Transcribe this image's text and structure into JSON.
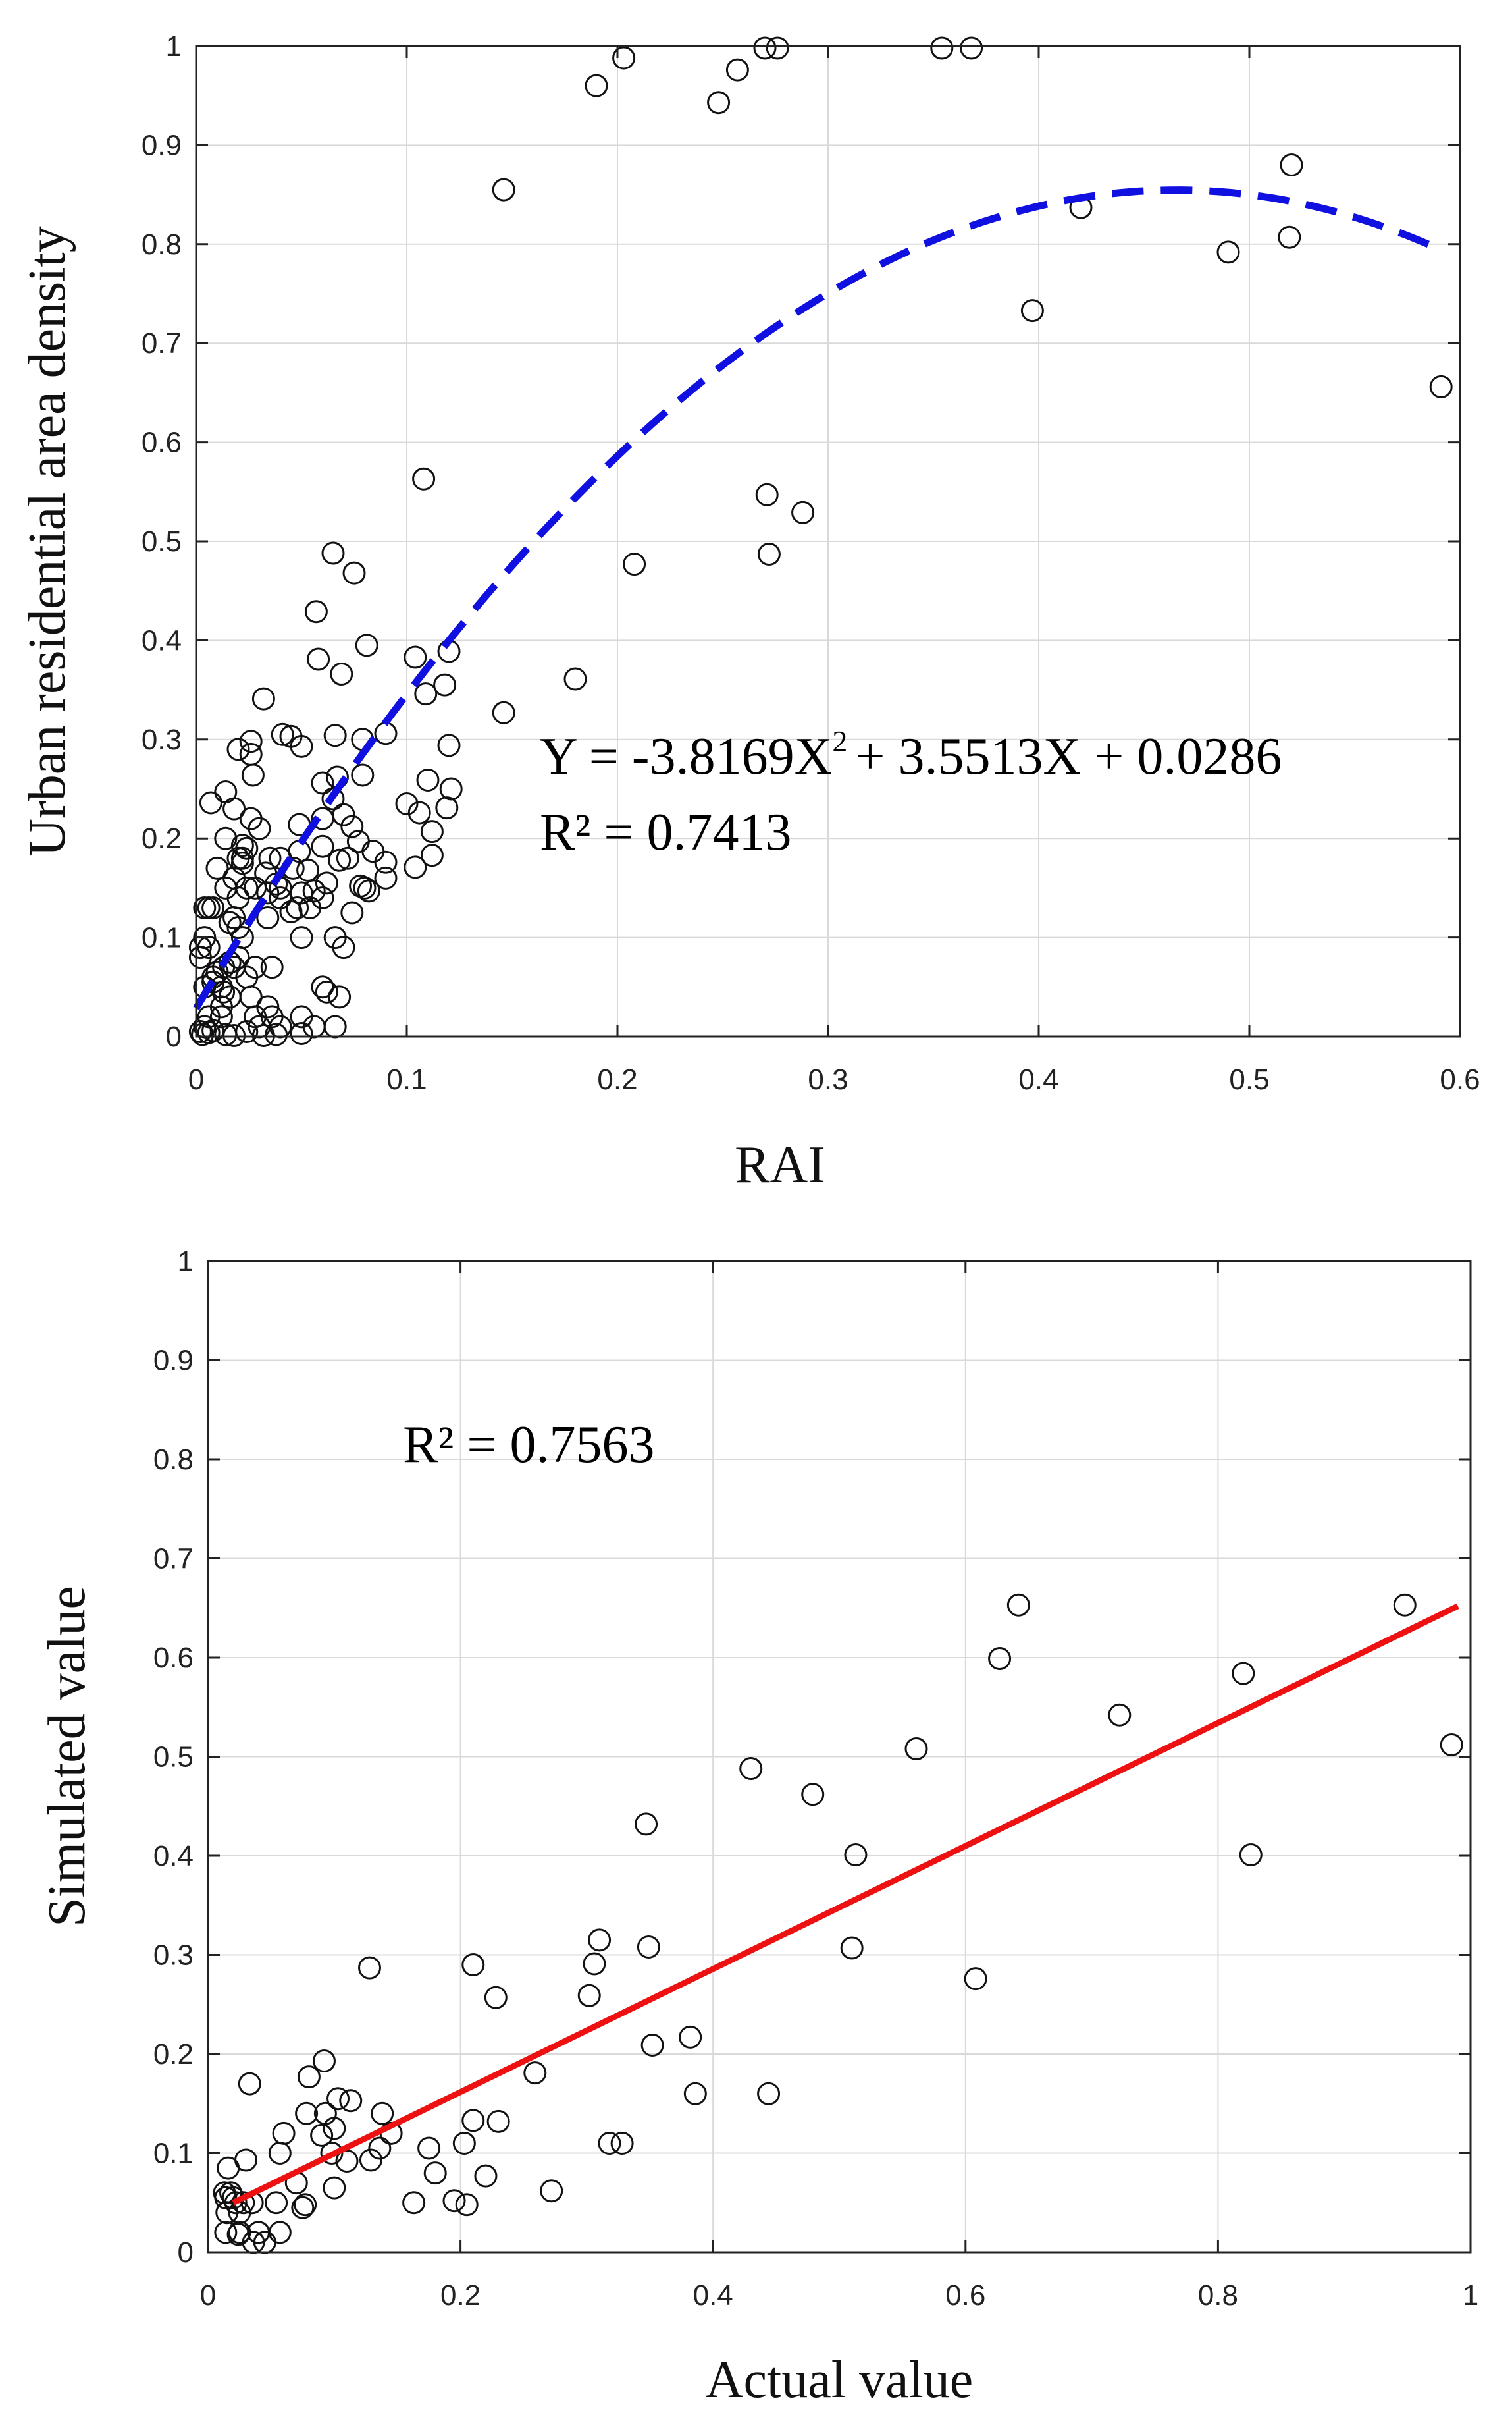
{
  "chart_data": [
    {
      "type": "scatter",
      "title": "",
      "xlabel": "RAI",
      "ylabel": "Urban residential area density",
      "xlim": [
        0,
        0.6
      ],
      "ylim": [
        0,
        1
      ],
      "xticks": [
        "0",
        "0.1",
        "0.2",
        "0.3",
        "0.4",
        "0.5",
        "0.6"
      ],
      "yticks": [
        "0",
        "0.1",
        "0.2",
        "0.3",
        "0.4",
        "0.5",
        "0.6",
        "0.7",
        "0.8",
        "0.9",
        "1"
      ],
      "grid": true,
      "equation": {
        "pre": "Y = -3.8169X",
        "sup": "2",
        "post": "+ 3.5513X + 0.0286"
      },
      "r2_label": "R² = 0.7413",
      "fit": {
        "type": "quadratic",
        "a": -3.8169,
        "b": 3.5513,
        "c": 0.0286,
        "x_range": [
          0,
          0.59
        ],
        "color": "#1010e0",
        "style": "dashed"
      },
      "points": [
        [
          0.19,
          0.96
        ],
        [
          0.203,
          0.988
        ],
        [
          0.248,
          0.943
        ],
        [
          0.257,
          0.976
        ],
        [
          0.27,
          0.998
        ],
        [
          0.276,
          0.998
        ],
        [
          0.354,
          0.998
        ],
        [
          0.368,
          0.998
        ],
        [
          0.146,
          0.855
        ],
        [
          0.52,
          0.88
        ],
        [
          0.42,
          0.837
        ],
        [
          0.49,
          0.792
        ],
        [
          0.519,
          0.807
        ],
        [
          0.397,
          0.733
        ],
        [
          0.591,
          0.656
        ],
        [
          0.271,
          0.547
        ],
        [
          0.288,
          0.529
        ],
        [
          0.208,
          0.477
        ],
        [
          0.272,
          0.487
        ],
        [
          0.108,
          0.563
        ],
        [
          0.065,
          0.488
        ],
        [
          0.075,
          0.468
        ],
        [
          0.057,
          0.429
        ],
        [
          0.058,
          0.381
        ],
        [
          0.069,
          0.366
        ],
        [
          0.081,
          0.395
        ],
        [
          0.104,
          0.383
        ],
        [
          0.109,
          0.346
        ],
        [
          0.12,
          0.389
        ],
        [
          0.118,
          0.355
        ],
        [
          0.18,
          0.361
        ],
        [
          0.146,
          0.327
        ],
        [
          0.032,
          0.341
        ],
        [
          0.041,
          0.305
        ],
        [
          0.045,
          0.303
        ],
        [
          0.066,
          0.304
        ],
        [
          0.079,
          0.3
        ],
        [
          0.09,
          0.306
        ],
        [
          0.02,
          0.29
        ],
        [
          0.026,
          0.298
        ],
        [
          0.026,
          0.285
        ],
        [
          0.027,
          0.264
        ],
        [
          0.05,
          0.293
        ],
        [
          0.067,
          0.262
        ],
        [
          0.079,
          0.264
        ],
        [
          0.11,
          0.259
        ],
        [
          0.12,
          0.294
        ],
        [
          0.121,
          0.25
        ],
        [
          0.1,
          0.235
        ],
        [
          0.106,
          0.226
        ],
        [
          0.112,
          0.207
        ],
        [
          0.119,
          0.231
        ],
        [
          0.06,
          0.256
        ],
        [
          0.07,
          0.224
        ],
        [
          0.074,
          0.212
        ],
        [
          0.077,
          0.197
        ],
        [
          0.084,
          0.187
        ],
        [
          0.09,
          0.176
        ],
        [
          0.104,
          0.171
        ],
        [
          0.112,
          0.183
        ],
        [
          0.068,
          0.178
        ],
        [
          0.078,
          0.152
        ],
        [
          0.082,
          0.147
        ],
        [
          0.06,
          0.192
        ],
        [
          0.049,
          0.214
        ],
        [
          0.049,
          0.187
        ],
        [
          0.053,
          0.168
        ],
        [
          0.056,
          0.147
        ],
        [
          0.05,
          0.145
        ],
        [
          0.048,
          0.13
        ],
        [
          0.045,
          0.126
        ],
        [
          0.04,
          0.14
        ],
        [
          0.04,
          0.15
        ],
        [
          0.034,
          0.145
        ],
        [
          0.033,
          0.165
        ],
        [
          0.035,
          0.18
        ],
        [
          0.04,
          0.18
        ],
        [
          0.038,
          0.154
        ],
        [
          0.034,
          0.12
        ],
        [
          0.03,
          0.21
        ],
        [
          0.026,
          0.22
        ],
        [
          0.022,
          0.18
        ],
        [
          0.02,
          0.18
        ],
        [
          0.018,
          0.16
        ],
        [
          0.02,
          0.14
        ],
        [
          0.014,
          0.15
        ],
        [
          0.01,
          0.17
        ],
        [
          0.014,
          0.2
        ],
        [
          0.018,
          0.23
        ],
        [
          0.014,
          0.247
        ],
        [
          0.007,
          0.236
        ],
        [
          0.022,
          0.193
        ],
        [
          0.024,
          0.19
        ],
        [
          0.022,
          0.175
        ],
        [
          0.024,
          0.15
        ],
        [
          0.028,
          0.15
        ],
        [
          0.018,
          0.12
        ],
        [
          0.016,
          0.115
        ],
        [
          0.02,
          0.11
        ],
        [
          0.022,
          0.1
        ],
        [
          0.02,
          0.08
        ],
        [
          0.016,
          0.075
        ],
        [
          0.013,
          0.07
        ],
        [
          0.01,
          0.065
        ],
        [
          0.008,
          0.06
        ],
        [
          0.006,
          0.13
        ],
        [
          0.004,
          0.13
        ],
        [
          0.008,
          0.13
        ],
        [
          0.002,
          0.09
        ],
        [
          0.002,
          0.08
        ],
        [
          0.004,
          0.1
        ],
        [
          0.006,
          0.09
        ],
        [
          0.004,
          0.05
        ],
        [
          0.008,
          0.055
        ],
        [
          0.012,
          0.05
        ],
        [
          0.013,
          0.045
        ],
        [
          0.016,
          0.04
        ],
        [
          0.012,
          0.03
        ],
        [
          0.018,
          0.07
        ],
        [
          0.024,
          0.06
        ],
        [
          0.026,
          0.04
        ],
        [
          0.028,
          0.02
        ],
        [
          0.03,
          0.01
        ],
        [
          0.04,
          0.01
        ],
        [
          0.036,
          0.02
        ],
        [
          0.034,
          0.03
        ],
        [
          0.05,
          0.02
        ],
        [
          0.056,
          0.01
        ],
        [
          0.066,
          0.01
        ],
        [
          0.062,
          0.045
        ],
        [
          0.06,
          0.05
        ],
        [
          0.068,
          0.04
        ],
        [
          0.07,
          0.09
        ],
        [
          0.066,
          0.1
        ],
        [
          0.074,
          0.125
        ],
        [
          0.08,
          0.15
        ],
        [
          0.06,
          0.14
        ],
        [
          0.062,
          0.155
        ],
        [
          0.054,
          0.13
        ],
        [
          0.05,
          0.1
        ],
        [
          0.036,
          0.07
        ],
        [
          0.028,
          0.07
        ],
        [
          0.012,
          0.02
        ],
        [
          0.006,
          0.02
        ],
        [
          0.004,
          0.01
        ],
        [
          0.002,
          0.005
        ],
        [
          0.003,
          0.002
        ],
        [
          0.006,
          0.004
        ],
        [
          0.008,
          0.006
        ],
        [
          0.014,
          0.002
        ],
        [
          0.018,
          0.001
        ],
        [
          0.024,
          0.005
        ],
        [
          0.032,
          0.001
        ],
        [
          0.038,
          0.002
        ],
        [
          0.05,
          0.003
        ],
        [
          0.046,
          0.17
        ],
        [
          0.06,
          0.22
        ],
        [
          0.065,
          0.24
        ],
        [
          0.072,
          0.18
        ],
        [
          0.09,
          0.16
        ]
      ]
    },
    {
      "type": "scatter",
      "title": "",
      "xlabel": "Actual value",
      "ylabel": "Simulated value",
      "xlim": [
        0,
        1
      ],
      "ylim": [
        0,
        1
      ],
      "xticks": [
        "0",
        "0.2",
        "0.4",
        "0.6",
        "0.8",
        "1"
      ],
      "yticks": [
        "0",
        "0.1",
        "0.2",
        "0.3",
        "0.4",
        "0.5",
        "0.6",
        "0.7",
        "0.8",
        "0.9",
        "1"
      ],
      "grid": true,
      "r2_label": "R² = 0.7563",
      "fit": {
        "type": "linear",
        "p0": [
          0.02,
          0.05
        ],
        "p1": [
          0.99,
          0.652
        ],
        "color": "#ee1111",
        "style": "solid"
      },
      "points": [
        [
          0.948,
          0.653
        ],
        [
          0.985,
          0.512
        ],
        [
          0.82,
          0.584
        ],
        [
          0.826,
          0.401
        ],
        [
          0.722,
          0.542
        ],
        [
          0.642,
          0.653
        ],
        [
          0.627,
          0.599
        ],
        [
          0.608,
          0.276
        ],
        [
          0.561,
          0.508
        ],
        [
          0.513,
          0.401
        ],
        [
          0.51,
          0.307
        ],
        [
          0.479,
          0.462
        ],
        [
          0.43,
          0.488
        ],
        [
          0.444,
          0.16
        ],
        [
          0.386,
          0.16
        ],
        [
          0.382,
          0.217
        ],
        [
          0.352,
          0.209
        ],
        [
          0.347,
          0.432
        ],
        [
          0.349,
          0.308
        ],
        [
          0.31,
          0.315
        ],
        [
          0.306,
          0.291
        ],
        [
          0.302,
          0.259
        ],
        [
          0.328,
          0.11
        ],
        [
          0.318,
          0.11
        ],
        [
          0.272,
          0.062
        ],
        [
          0.259,
          0.181
        ],
        [
          0.228,
          0.257
        ],
        [
          0.23,
          0.132
        ],
        [
          0.22,
          0.077
        ],
        [
          0.21,
          0.29
        ],
        [
          0.21,
          0.133
        ],
        [
          0.203,
          0.11
        ],
        [
          0.205,
          0.048
        ],
        [
          0.195,
          0.052
        ],
        [
          0.18,
          0.08
        ],
        [
          0.175,
          0.105
        ],
        [
          0.163,
          0.05
        ],
        [
          0.145,
          0.12
        ],
        [
          0.138,
          0.14
        ],
        [
          0.136,
          0.105
        ],
        [
          0.129,
          0.093
        ],
        [
          0.128,
          0.287
        ],
        [
          0.113,
          0.153
        ],
        [
          0.11,
          0.092
        ],
        [
          0.103,
          0.155
        ],
        [
          0.1,
          0.125
        ],
        [
          0.098,
          0.1
        ],
        [
          0.1,
          0.065
        ],
        [
          0.093,
          0.14
        ],
        [
          0.092,
          0.193
        ],
        [
          0.09,
          0.118
        ],
        [
          0.08,
          0.177
        ],
        [
          0.078,
          0.14
        ],
        [
          0.077,
          0.048
        ],
        [
          0.075,
          0.045
        ],
        [
          0.07,
          0.07
        ],
        [
          0.06,
          0.12
        ],
        [
          0.057,
          0.1
        ],
        [
          0.054,
          0.05
        ],
        [
          0.057,
          0.02
        ],
        [
          0.045,
          0.01
        ],
        [
          0.04,
          0.02
        ],
        [
          0.035,
          0.05
        ],
        [
          0.033,
          0.17
        ],
        [
          0.03,
          0.093
        ],
        [
          0.028,
          0.05
        ],
        [
          0.025,
          0.04
        ],
        [
          0.025,
          0.02
        ],
        [
          0.02,
          0.055
        ],
        [
          0.018,
          0.06
        ],
        [
          0.016,
          0.085
        ],
        [
          0.014,
          0.055
        ],
        [
          0.014,
          0.02
        ],
        [
          0.015,
          0.04
        ],
        [
          0.013,
          0.06
        ],
        [
          0.022,
          0.05
        ],
        [
          0.024,
          0.018
        ],
        [
          0.036,
          0.01
        ],
        [
          0.04,
          0.02
        ],
        [
          0.045,
          0.01
        ]
      ]
    }
  ]
}
